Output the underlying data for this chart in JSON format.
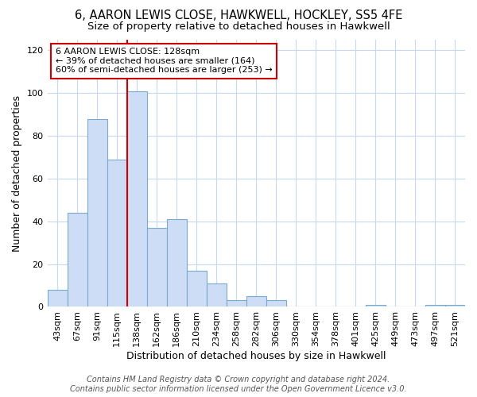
{
  "title": "6, AARON LEWIS CLOSE, HAWKWELL, HOCKLEY, SS5 4FE",
  "subtitle": "Size of property relative to detached houses in Hawkwell",
  "xlabel": "Distribution of detached houses by size in Hawkwell",
  "ylabel": "Number of detached properties",
  "categories": [
    "43sqm",
    "67sqm",
    "91sqm",
    "115sqm",
    "138sqm",
    "162sqm",
    "186sqm",
    "210sqm",
    "234sqm",
    "258sqm",
    "282sqm",
    "306sqm",
    "330sqm",
    "354sqm",
    "378sqm",
    "401sqm",
    "425sqm",
    "449sqm",
    "473sqm",
    "497sqm",
    "521sqm"
  ],
  "values": [
    8,
    44,
    88,
    69,
    101,
    37,
    41,
    17,
    11,
    3,
    5,
    3,
    0,
    0,
    0,
    0,
    1,
    0,
    0,
    1,
    1
  ],
  "bar_color": "#ccddf5",
  "bar_edge_color": "#7aaad0",
  "highlight_bar_index": 4,
  "highlight_line_color": "#cc0000",
  "annotation_text": "6 AARON LEWIS CLOSE: 128sqm\n← 39% of detached houses are smaller (164)\n60% of semi-detached houses are larger (253) →",
  "annotation_box_color": "#ffffff",
  "annotation_box_edge": "#cc0000",
  "ylim": [
    0,
    125
  ],
  "yticks": [
    0,
    20,
    40,
    60,
    80,
    100,
    120
  ],
  "footer_line1": "Contains HM Land Registry data © Crown copyright and database right 2024.",
  "footer_line2": "Contains public sector information licensed under the Open Government Licence v3.0.",
  "background_color": "#ffffff",
  "plot_bg_color": "#ffffff",
  "grid_color": "#c8d8ee",
  "title_fontsize": 10.5,
  "subtitle_fontsize": 9.5,
  "axis_label_fontsize": 9,
  "tick_fontsize": 8,
  "annotation_fontsize": 8,
  "footer_fontsize": 7
}
